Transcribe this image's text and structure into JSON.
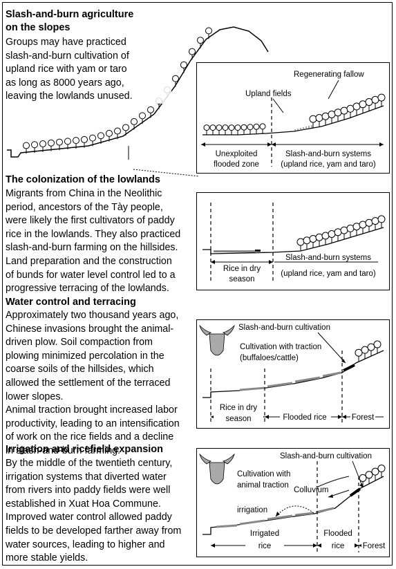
{
  "sections": [
    {
      "title_lines": [
        "Slash-and-burn agriculture",
        "on the slopes"
      ],
      "body_lines": [
        "Groups may have practiced",
        "slash-and-burn cultivation of",
        "upland rice with yam or taro",
        "as long as 8000 years ago,",
        "leaving the lowlands unused."
      ]
    },
    {
      "title_lines": [
        "The colonization of the lowlands"
      ],
      "body_lines": [
        "Migrants from China in the Neolithic",
        "period, ancestors of the Tày people,",
        "were likely the first cultivators of paddy",
        "rice in the lowlands. They also practiced",
        "slash-and-burn farming on the hillsides.",
        "Land preparation and the construction",
        "of bunds for water level control led to a",
        "progressive terracing of the lowlands."
      ]
    },
    {
      "title_lines": [
        "Water control and terracing"
      ],
      "body_lines": [
        "Approximately two thousand years ago,",
        "Chinese invasions brought the animal-",
        "driven plow. Soil compaction from",
        "plowing minimized percolation in the",
        "coarse soils of the hillsides, which",
        "allowed the settlement of the terraced",
        "lower slopes.",
        "Animal traction brought increased labor",
        "productivity, leading to an intensification",
        "of work on the rice fields and a decline",
        "in slash-and-burn farming."
      ]
    },
    {
      "title_lines": [
        "Irrigation and ricefield expansion"
      ],
      "body_lines": [
        "By the middle of the twentieth century,",
        "irrigation systems that diverted water",
        "from rivers into paddy fields were well",
        "established in Xuat Hoa Commune.",
        "Improved water control allowed paddy",
        "fields to be developed farther away from",
        "water sources, leading to higher and",
        "more stable yields."
      ]
    }
  ],
  "panel1": {
    "upland_fields": "Upland fields",
    "regenerating_fallow": "Regenerating fallow",
    "unexploited_1": "Unexploited",
    "unexploited_2": "flooded zone",
    "slash_1": "Slash-and-burn systems",
    "slash_2": "(upland rice, yam and taro)"
  },
  "panel2": {
    "rice_dry_1": "Rice in dry",
    "rice_dry_2": "season",
    "slash_1": "Slash-and-burn systems",
    "slash_2": "(upland rice, yam and taro)"
  },
  "panel3": {
    "slash_cult": "Slash-and-burn cultivation",
    "traction_1": "Cultivation with traction",
    "traction_2": "(buffaloes/cattle)",
    "rice_dry_1": "Rice in dry",
    "rice_dry_2": "season",
    "flooded": "Flooded rice",
    "forest": "Forest"
  },
  "panel4": {
    "slash_cult": "Slash-and-burn cultivation",
    "cult_1": "Cultivation with",
    "cult_2": "animal traction",
    "colluvium": "Colluvium",
    "irrigation": "irrigation",
    "irrigated_1": "Irrigated",
    "irrigated_2": "rice",
    "flooded_1": "Flooded",
    "flooded_2": "rice",
    "forest": "Forest"
  }
}
